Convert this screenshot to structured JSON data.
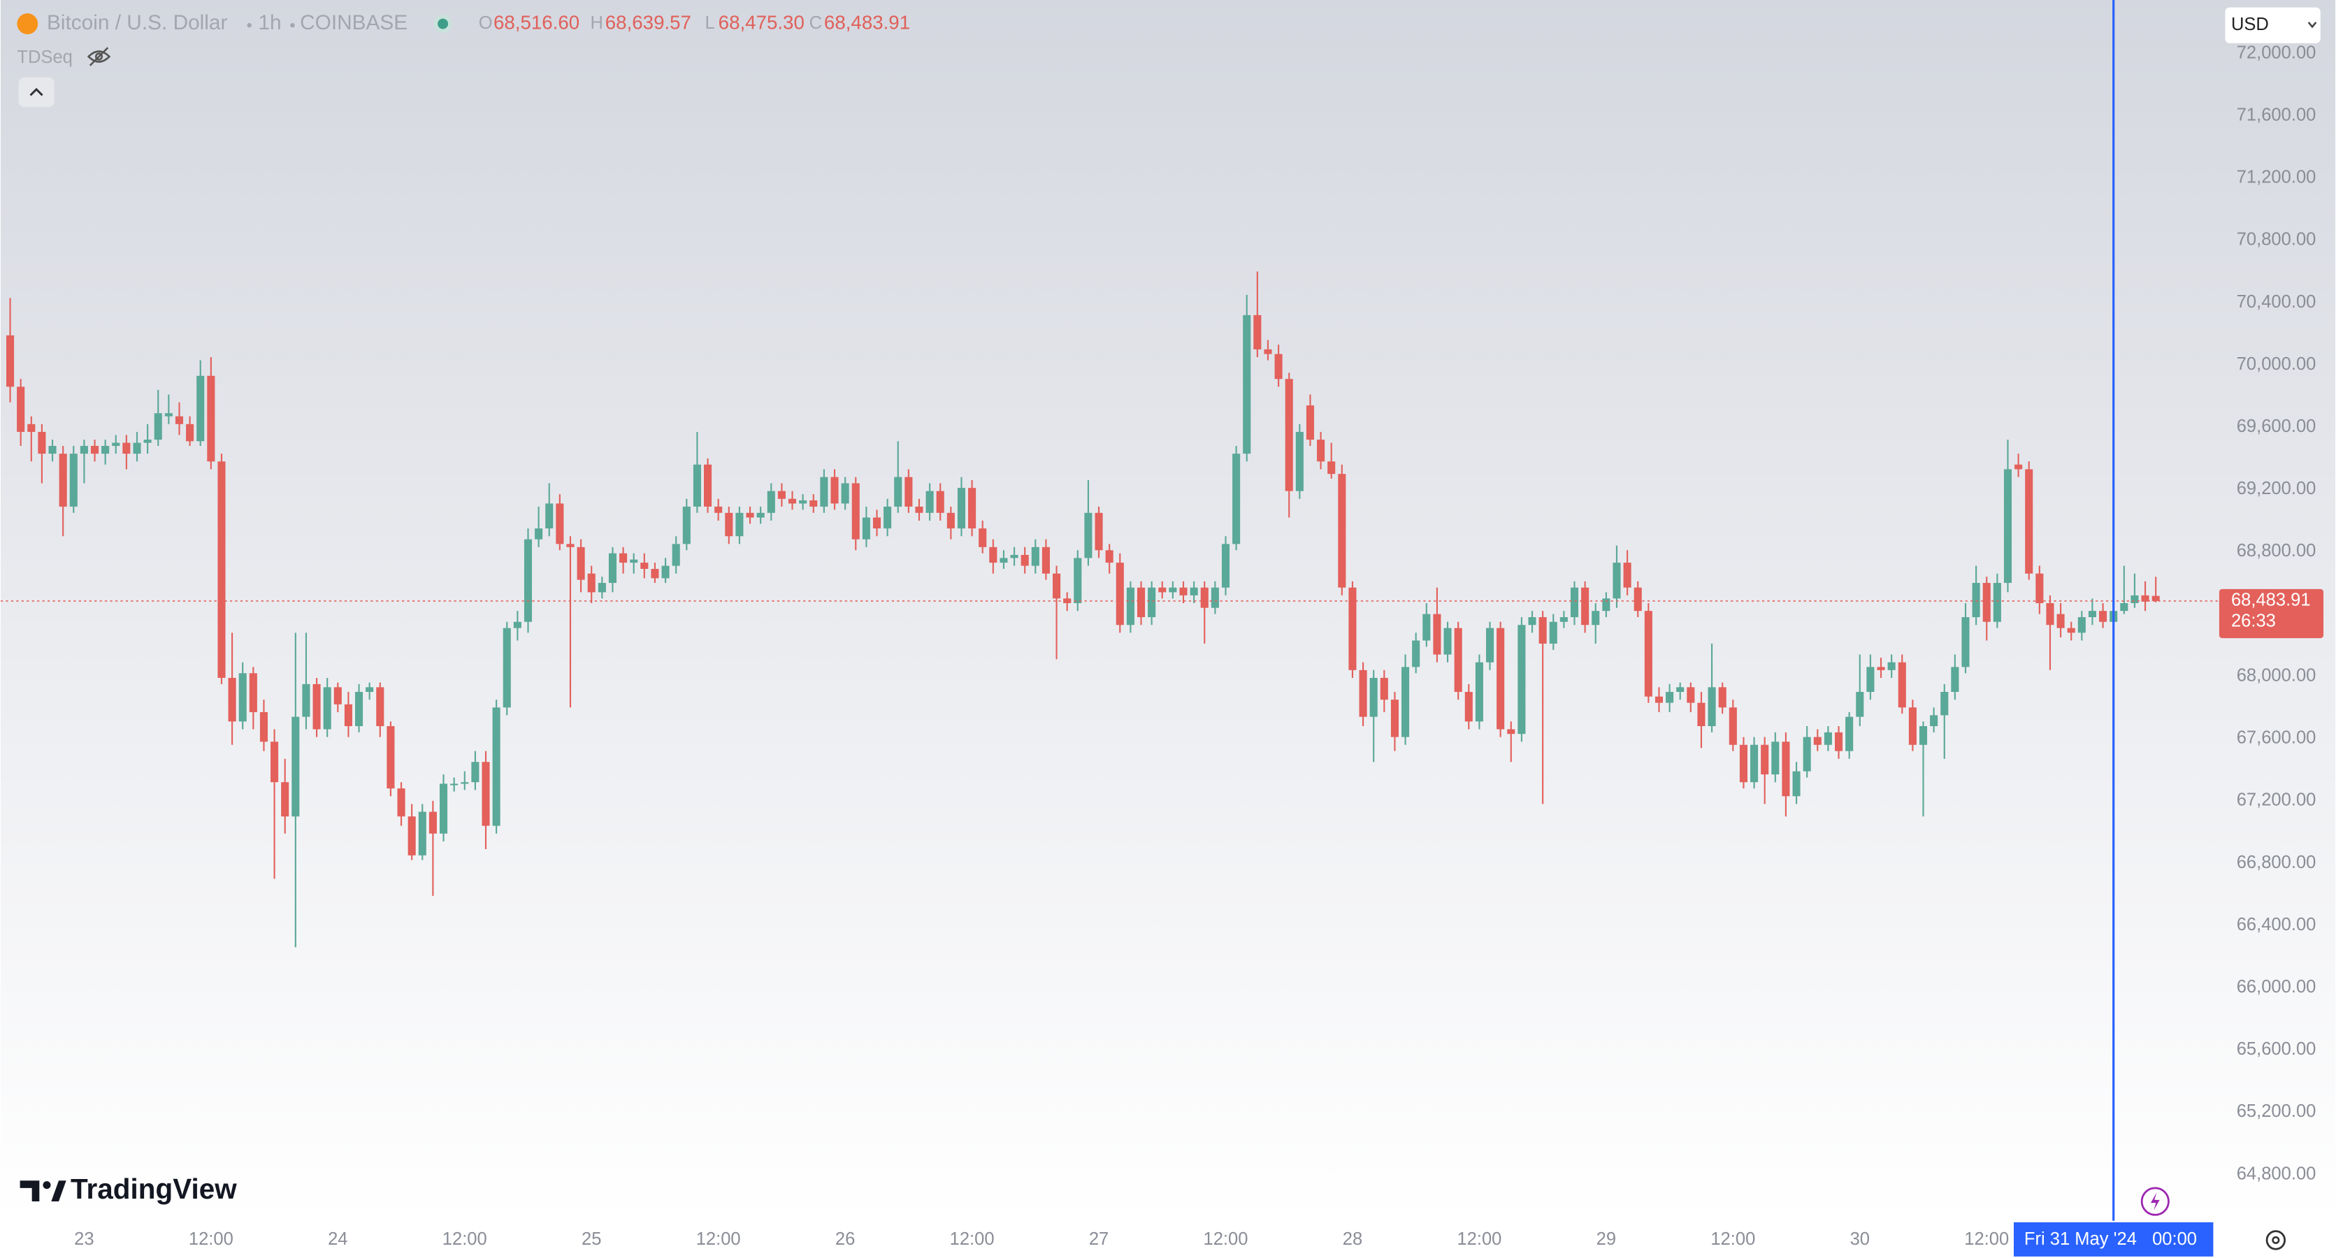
{
  "header": {
    "symbol": "Bitcoin / U.S. Dollar",
    "interval": "1h",
    "exchange": "COINBASE",
    "ohlc": [
      {
        "key": "O",
        "value": "68,516.60"
      },
      {
        "key": "H",
        "value": "68,639.57"
      },
      {
        "key": "L",
        "value": "68,475.30"
      },
      {
        "key": "C",
        "value": "68,483.91"
      }
    ]
  },
  "indicator": "TDSeq",
  "currency": "USD",
  "brand": "TradingView",
  "chart_data": {
    "type": "candlestick",
    "up_color": "#5aa898",
    "down_color": "#e3605b",
    "grid": false,
    "open": [
      70190,
      69860,
      69620,
      69570,
      69430,
      69430,
      69090,
      69430,
      69480,
      69430,
      69480,
      69500,
      69430,
      69500,
      69520,
      69670,
      69670,
      69620,
      69510,
      69930,
      69380,
      67990,
      67710,
      68020,
      67770,
      67580,
      67320,
      67100,
      67740,
      67950,
      67660,
      67930,
      67820,
      67680,
      67900,
      67930,
      67680,
      67280,
      67100,
      66850,
      67130,
      66990,
      67310,
      67310,
      67320,
      67450,
      67040,
      67800,
      68310,
      68350,
      68880,
      68950,
      69110,
      68850,
      68830,
      68660,
      68540,
      68600,
      68790,
      68730,
      68730,
      68690,
      68630,
      68710,
      68850,
      69090,
      69360,
      69090,
      69050,
      68900,
      69050,
      69020,
      69050,
      69190,
      69140,
      69110,
      69130,
      69090,
      69280,
      69110,
      69240,
      68880,
      69020,
      68950,
      69090,
      69280,
      69090,
      69050,
      69190,
      69050,
      68950,
      69210,
      68950,
      68830,
      68730,
      68760,
      68780,
      68710,
      68830,
      68660,
      68500,
      68470,
      68760,
      69050,
      68810,
      68730,
      68330,
      68570,
      68380,
      68570,
      68540,
      68570,
      68520,
      68570,
      68440,
      68570,
      68850,
      69430,
      70320,
      70100,
      70070,
      69910,
      69190,
      69740,
      69520,
      69380,
      69300,
      68570,
      68040,
      67740,
      67990,
      67850,
      67610,
      68060,
      68230,
      68400,
      68140,
      68310,
      67900,
      67710,
      68090,
      68310,
      67660,
      67630,
      68330,
      68380,
      68210,
      68350,
      68380,
      68570,
      68330,
      68420,
      68500,
      68730,
      68570,
      68420,
      67870,
      67830,
      67900,
      67930,
      67830,
      67680,
      67930,
      67800,
      67560,
      67320,
      67560,
      67370,
      67580,
      67230,
      67390,
      67610,
      67560,
      67640,
      67520,
      67740,
      67900,
      68060,
      68040,
      68090,
      67800,
      67560,
      67680,
      67750,
      67900,
      68060,
      68380,
      68600,
      68350,
      68600,
      69360,
      69330,
      68660,
      68470,
      68400,
      68310,
      68280,
      68380,
      68420,
      68350,
      68420,
      68470,
      68520,
      68516.6
    ],
    "high": [
      70430,
      69910,
      69670,
      69620,
      69520,
      69480,
      69480,
      69520,
      69520,
      69520,
      69550,
      69550,
      69570,
      69620,
      69840,
      69810,
      69760,
      69670,
      70030,
      70050,
      69430,
      68280,
      68090,
      68060,
      67850,
      67660,
      67470,
      68280,
      68280,
      67990,
      67990,
      67960,
      67900,
      67950,
      67960,
      67960,
      67710,
      67320,
      67180,
      67180,
      67200,
      67370,
      67350,
      67390,
      67520,
      67520,
      67850,
      68350,
      68420,
      68950,
      69090,
      69240,
      69170,
      68900,
      68880,
      68710,
      68640,
      68830,
      68830,
      68790,
      68790,
      68730,
      68760,
      68900,
      69140,
      69570,
      69400,
      69140,
      69090,
      69090,
      69090,
      69090,
      69240,
      69240,
      69190,
      69170,
      69170,
      69330,
      69330,
      69280,
      69280,
      69090,
      69070,
      69140,
      69510,
      69330,
      69140,
      69240,
      69240,
      69090,
      69280,
      69260,
      69000,
      68880,
      68810,
      68830,
      68830,
      68880,
      68880,
      68710,
      68540,
      68810,
      69260,
      69090,
      68850,
      68790,
      68610,
      68610,
      68610,
      68610,
      68610,
      68610,
      68610,
      68610,
      68610,
      68900,
      69480,
      70450,
      70600,
      70160,
      70130,
      69950,
      69620,
      69810,
      69570,
      69500,
      69360,
      68610,
      68090,
      68040,
      68040,
      67900,
      68140,
      68280,
      68470,
      68570,
      68350,
      68350,
      67950,
      68140,
      68350,
      68350,
      67710,
      68380,
      68420,
      68420,
      68400,
      68420,
      68610,
      68610,
      68470,
      68540,
      68840,
      68810,
      68610,
      68470,
      67930,
      67950,
      67960,
      67960,
      67900,
      68210,
      67960,
      67850,
      67610,
      67610,
      67610,
      67640,
      67640,
      67450,
      67680,
      67660,
      67680,
      67680,
      67770,
      68140,
      68140,
      68120,
      68140,
      68140,
      67850,
      67710,
      67800,
      67950,
      68140,
      68470,
      68710,
      68640,
      68660,
      69520,
      69430,
      69380,
      68710,
      68520,
      68470,
      68350,
      68420,
      68500,
      68470,
      68470,
      68710,
      68660,
      68610,
      68639.57
    ],
    "low": [
      69760,
      69480,
      69380,
      69240,
      69380,
      68900,
      69050,
      69240,
      69380,
      69360,
      69430,
      69330,
      69380,
      69430,
      69480,
      69620,
      69550,
      69480,
      69480,
      69330,
      67950,
      67560,
      67660,
      67660,
      67520,
      66700,
      66990,
      66260,
      67660,
      67610,
      67610,
      67770,
      67610,
      67640,
      67850,
      67610,
      67230,
      67040,
      66820,
      66820,
      66590,
      66940,
      67260,
      67270,
      67270,
      66890,
      66990,
      67750,
      68230,
      68280,
      68830,
      68900,
      68810,
      67800,
      68540,
      68470,
      68500,
      68540,
      68660,
      68660,
      68630,
      68600,
      68600,
      68660,
      68810,
      69050,
      69050,
      69000,
      68850,
      68850,
      68980,
      68980,
      69000,
      69090,
      69070,
      69070,
      69050,
      69050,
      69070,
      69070,
      68810,
      68830,
      68900,
      68900,
      69050,
      69050,
      69000,
      69000,
      69000,
      68880,
      68900,
      68900,
      68790,
      68660,
      68690,
      68710,
      68660,
      68660,
      68620,
      68110,
      68420,
      68420,
      68710,
      68760,
      68660,
      68280,
      68280,
      68330,
      68330,
      68500,
      68500,
      68470,
      68470,
      68210,
      68400,
      68520,
      68810,
      69380,
      70050,
      70030,
      69860,
      69020,
      69140,
      69480,
      69330,
      69270,
      68520,
      67990,
      67680,
      67450,
      67770,
      67520,
      67560,
      68020,
      68190,
      68090,
      68090,
      67850,
      67660,
      67660,
      68040,
      67610,
      67450,
      67580,
      68280,
      67180,
      68170,
      68310,
      68330,
      68280,
      68210,
      68380,
      68440,
      68520,
      68380,
      67830,
      67770,
      67770,
      67850,
      67770,
      67540,
      67640,
      67760,
      67520,
      67280,
      67280,
      67180,
      67320,
      67100,
      67180,
      67350,
      67520,
      67520,
      67470,
      67470,
      67680,
      67850,
      67990,
      67990,
      67760,
      67520,
      67100,
      67640,
      67470,
      67850,
      68020,
      68330,
      68230,
      68310,
      68540,
      69280,
      68620,
      68400,
      68040,
      68250,
      68230,
      68230,
      68330,
      68310,
      68310,
      68400,
      68440,
      68420,
      68475.3
    ],
    "close": [
      69860,
      69570,
      69570,
      69430,
      69480,
      69090,
      69430,
      69480,
      69430,
      69480,
      69500,
      69430,
      69500,
      69520,
      69690,
      69690,
      69620,
      69510,
      69930,
      69380,
      67990,
      67710,
      68020,
      67770,
      67580,
      67320,
      67100,
      67740,
      67950,
      67660,
      67930,
      67820,
      67680,
      67900,
      67930,
      67680,
      67280,
      67100,
      66850,
      67130,
      66990,
      67310,
      67310,
      67320,
      67450,
      67040,
      67800,
      68310,
      68350,
      68880,
      68950,
      69110,
      68850,
      68830,
      68620,
      68540,
      68600,
      68790,
      68730,
      68750,
      68690,
      68630,
      68710,
      68850,
      69090,
      69360,
      69090,
      69050,
      68900,
      69050,
      69020,
      69050,
      69190,
      69140,
      69110,
      69130,
      69090,
      69280,
      69110,
      69240,
      68880,
      69020,
      68950,
      69090,
      69280,
      69090,
      69050,
      69190,
      69050,
      68950,
      69210,
      68950,
      68830,
      68730,
      68760,
      68780,
      68710,
      68830,
      68660,
      68500,
      68470,
      68760,
      69050,
      68810,
      68730,
      68330,
      68570,
      68380,
      68570,
      68540,
      68570,
      68520,
      68570,
      68440,
      68570,
      68850,
      69430,
      70320,
      70100,
      70070,
      69910,
      69190,
      69570,
      69520,
      69380,
      69300,
      68570,
      68040,
      67740,
      67990,
      67850,
      67610,
      68060,
      68230,
      68400,
      68140,
      68310,
      67900,
      67710,
      68090,
      68310,
      67660,
      67630,
      68330,
      68380,
      68210,
      68350,
      68380,
      68570,
      68330,
      68420,
      68500,
      68730,
      68570,
      68420,
      67870,
      67830,
      67900,
      67930,
      67830,
      67680,
      67930,
      67800,
      67560,
      67320,
      67560,
      67370,
      67580,
      67230,
      67390,
      67610,
      67560,
      67640,
      67520,
      67740,
      67900,
      68060,
      68040,
      68090,
      67800,
      67560,
      67680,
      67750,
      67900,
      68060,
      68380,
      68600,
      68350,
      68600,
      69330,
      69330,
      68660,
      68470,
      68330,
      68310,
      68280,
      68380,
      68420,
      68350,
      68420,
      68470,
      68520,
      68480,
      68483.91
    ],
    "xlim": [
      -0.9,
      209
    ],
    "xticks": [
      {
        "value": 7,
        "label": "23"
      },
      {
        "value": 19,
        "label": "12:00"
      },
      {
        "value": 31,
        "label": "24"
      },
      {
        "value": 43,
        "label": "12:00"
      },
      {
        "value": 55,
        "label": "25"
      },
      {
        "value": 67,
        "label": "12:00"
      },
      {
        "value": 79,
        "label": "26"
      },
      {
        "value": 91,
        "label": "12:00"
      },
      {
        "value": 103,
        "label": "27"
      },
      {
        "value": 115,
        "label": "12:00"
      },
      {
        "value": 127,
        "label": "28"
      },
      {
        "value": 139,
        "label": "12:00"
      },
      {
        "value": 151,
        "label": "29"
      },
      {
        "value": 163,
        "label": "12:00"
      },
      {
        "value": 175,
        "label": "30"
      },
      {
        "value": 187,
        "label": "12:00"
      }
    ],
    "ylim": [
      64503,
      72344
    ],
    "yticks": [
      {
        "value": 64800,
        "label": "64,800.00"
      },
      {
        "value": 65200,
        "label": "65,200.00"
      },
      {
        "value": 65600,
        "label": "65,600.00"
      },
      {
        "value": 66000,
        "label": "66,000.00"
      },
      {
        "value": 66400,
        "label": "66,400.00"
      },
      {
        "value": 66800,
        "label": "66,800.00"
      },
      {
        "value": 67200,
        "label": "67,200.00"
      },
      {
        "value": 67600,
        "label": "67,600.00"
      },
      {
        "value": 68000,
        "label": "68,000.00"
      },
      {
        "value": 68400,
        "label": "68,400.00"
      },
      {
        "value": 68800,
        "label": "68,800.00"
      },
      {
        "value": 69200,
        "label": "69,200.00"
      },
      {
        "value": 69600,
        "label": "69,600.00"
      },
      {
        "value": 70000,
        "label": "70,000.00"
      },
      {
        "value": 70400,
        "label": "70,400.00"
      },
      {
        "value": 70800,
        "label": "70,800.00"
      },
      {
        "value": 71200,
        "label": "71,200.00"
      },
      {
        "value": 71600,
        "label": "71,600.00"
      },
      {
        "value": 72000,
        "label": "72,000.00"
      }
    ],
    "last_price_label": "68,483.91",
    "countdown": "26:33",
    "crosshair": {
      "x": 199,
      "date": "Fri 31 May '24",
      "time": "00:00",
      "color": "#2962ff"
    }
  }
}
